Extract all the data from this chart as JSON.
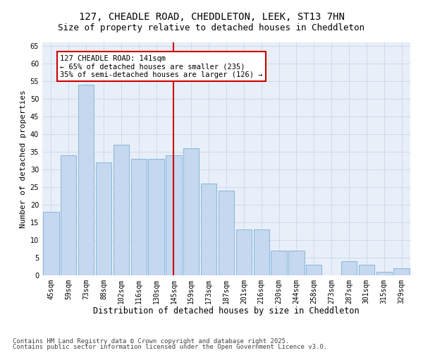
{
  "title1": "127, CHEADLE ROAD, CHEDDLETON, LEEK, ST13 7HN",
  "title2": "Size of property relative to detached houses in Cheddleton",
  "xlabel": "Distribution of detached houses by size in Cheddleton",
  "ylabel": "Number of detached properties",
  "categories": [
    "45sqm",
    "59sqm",
    "73sqm",
    "88sqm",
    "102sqm",
    "116sqm",
    "130sqm",
    "145sqm",
    "159sqm",
    "173sqm",
    "187sqm",
    "201sqm",
    "216sqm",
    "230sqm",
    "244sqm",
    "258sqm",
    "273sqm",
    "287sqm",
    "301sqm",
    "315sqm",
    "329sqm"
  ],
  "values": [
    18,
    34,
    54,
    32,
    37,
    33,
    33,
    34,
    36,
    26,
    24,
    13,
    13,
    7,
    7,
    3,
    0,
    4,
    3,
    1,
    2
  ],
  "bar_color": "#c5d8f0",
  "bar_edge_color": "#7bafd4",
  "vline_index": 7,
  "vline_color": "#cc0000",
  "annotation_box_color": "#cc0000",
  "annotation_line1": "127 CHEADLE ROAD: 141sqm",
  "annotation_line2": "← 65% of detached houses are smaller (235)",
  "annotation_line3": "35% of semi-detached houses are larger (126) →",
  "ylim": [
    0,
    66
  ],
  "yticks": [
    0,
    5,
    10,
    15,
    20,
    25,
    30,
    35,
    40,
    45,
    50,
    55,
    60,
    65
  ],
  "grid_color": "#c8d8ea",
  "bg_color": "#e8eff8",
  "footer1": "Contains HM Land Registry data © Crown copyright and database right 2025.",
  "footer2": "Contains public sector information licensed under the Open Government Licence v3.0.",
  "title1_fontsize": 10,
  "title2_fontsize": 9,
  "xlabel_fontsize": 8.5,
  "ylabel_fontsize": 8,
  "tick_fontsize": 7,
  "annotation_fontsize": 7.5,
  "footer_fontsize": 6.5
}
